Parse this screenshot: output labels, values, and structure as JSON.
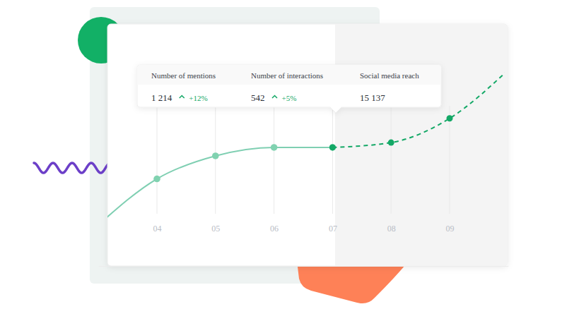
{
  "chart_data": {
    "type": "line",
    "categories": [
      null,
      "04",
      "05",
      "06",
      "07",
      "08",
      "09",
      null
    ],
    "series": [
      {
        "color": "#7fcfb2",
        "line_style": "solid",
        "marker": "circle",
        "values": [
          17,
          36,
          45.5,
          49,
          49,
          null,
          null,
          null
        ]
      },
      {
        "color": "#13a866",
        "line_style": "dashed",
        "marker": "circle",
        "values": [
          null,
          null,
          null,
          null,
          49,
          51,
          61,
          81
        ]
      }
    ],
    "ylim": [
      0,
      100
    ],
    "grid": true,
    "tick_labels": "x",
    "annotations": [
      {
        "label": "Number of mentions",
        "value": {
          "value": 1214,
          "label": "1 214"
        },
        "change": {
          "value": 12,
          "label": "+12%"
        }
      },
      {
        "label": "Number of interactions",
        "value": {
          "value": 542,
          "label": "542"
        },
        "change": {
          "value": 5,
          "label": "+5%"
        }
      },
      {
        "label": "Social media reach",
        "value": {
          "value": 15137,
          "label": "15 137"
        }
      }
    ]
  }
}
